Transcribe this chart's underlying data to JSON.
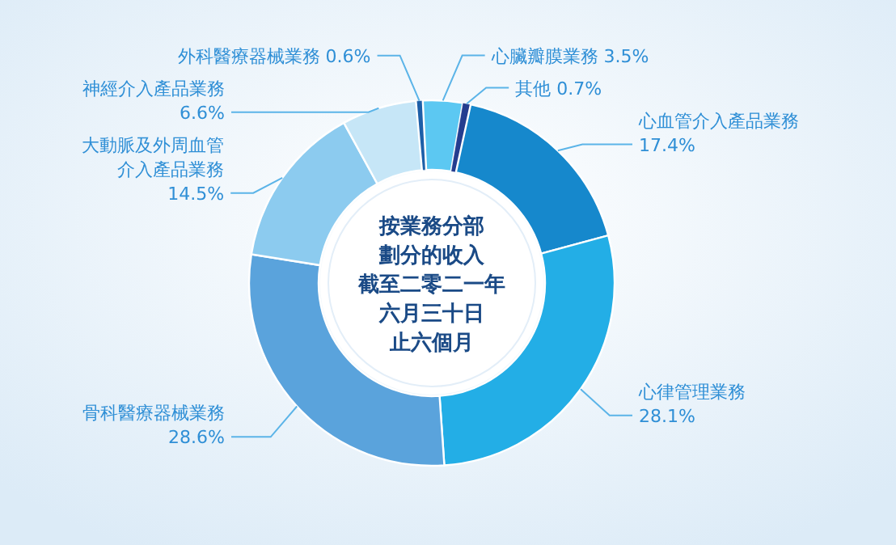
{
  "chart_data": {
    "type": "donut",
    "title": "按業務分部劃分的收入截至二零二一年六月三十日止六個月",
    "categories": [
      "外科醫療器械業務",
      "心臟瓣膜業務",
      "其他",
      "心血管介入產品業務",
      "心律管理業務",
      "骨科醫療器械業務",
      "大動脈及外周血管介入產品業務",
      "神經介入產品業務"
    ],
    "values": [
      0.6,
      3.5,
      0.7,
      17.4,
      28.1,
      28.6,
      14.5,
      6.6
    ],
    "value_labels": [
      "0.6%",
      "3.5%",
      "0.7%",
      "17.4%",
      "28.1%",
      "28.6%",
      "14.5%",
      "6.6%"
    ],
    "colors": [
      "#1d5fa8",
      "#5cc8f2",
      "#243d8f",
      "#1688cc",
      "#23aee6",
      "#5aa3dc",
      "#8ccbef",
      "#c6e6f7"
    ]
  }
}
